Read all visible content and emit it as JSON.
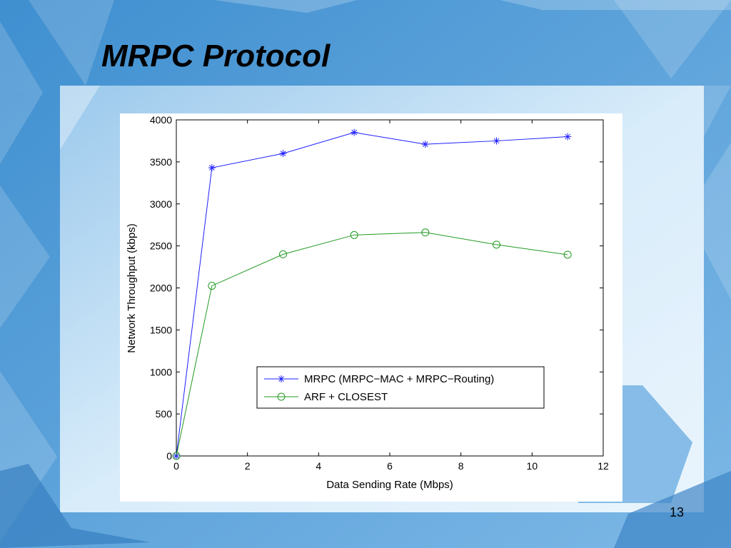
{
  "slide": {
    "title": "MRPC Protocol",
    "page_number": "13"
  },
  "colors": {
    "background": "#5a9fd6",
    "series_mrpc": "#1f1fff",
    "series_arf": "#229922"
  },
  "chart_data": {
    "type": "line",
    "title": "",
    "xlabel": "Data Sending Rate (Mbps)",
    "ylabel": "Network Throughput (kbps)",
    "xlim": [
      0,
      12
    ],
    "ylim": [
      0,
      4000
    ],
    "xticks": [
      0,
      2,
      4,
      6,
      8,
      10,
      12
    ],
    "yticks": [
      0,
      500,
      1000,
      1500,
      2000,
      2500,
      3000,
      3500,
      4000
    ],
    "grid": false,
    "legend_position": "lower-right",
    "series": [
      {
        "name": "MRPC (MRPC−MAC + MRPC−Routing)",
        "marker": "star",
        "color": "#1f1fff",
        "x": [
          0,
          1,
          3,
          5,
          7,
          9,
          11
        ],
        "y": [
          0,
          3430,
          3600,
          3850,
          3710,
          3750,
          3800
        ]
      },
      {
        "name": "ARF + CLOSEST",
        "marker": "circle",
        "color": "#229922",
        "x": [
          0,
          1,
          3,
          5,
          7,
          9,
          11
        ],
        "y": [
          0,
          2025,
          2400,
          2630,
          2660,
          2515,
          2395
        ]
      }
    ]
  }
}
